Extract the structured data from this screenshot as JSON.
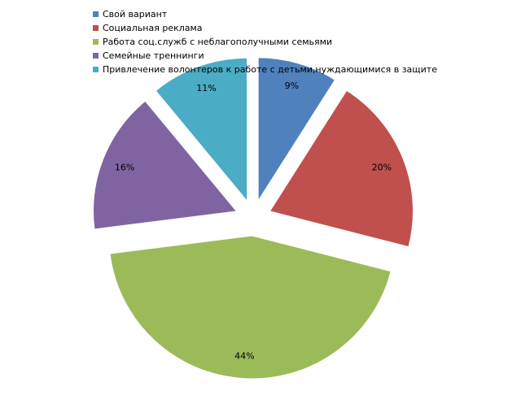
{
  "chart_data": {
    "type": "pie",
    "title": "",
    "legend_position": "top-left",
    "categories": [
      "Свой вариант",
      "Социальная реклама",
      "Работа соц.служб с неблагополучными семьями",
      "Семейные треннинги",
      "Привлечение волонтеров к работе с детьми,нуждающимися в защите"
    ],
    "values": [
      9,
      20,
      44,
      16,
      11
    ],
    "data_labels": [
      "9%",
      "20%",
      "44%",
      "16%",
      "11%"
    ],
    "colors": [
      "#4F81BD",
      "#C0504D",
      "#9BBB59",
      "#8064A2",
      "#4BACC6"
    ],
    "exploded": true
  }
}
